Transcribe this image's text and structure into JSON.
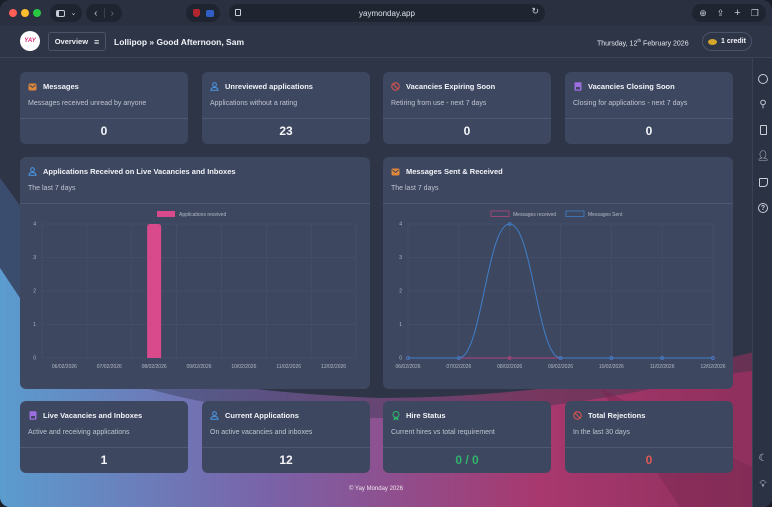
{
  "browser": {
    "url": "yaymonday.app"
  },
  "header": {
    "logo_text": "YAY",
    "overview_label": "Overview",
    "greeting": "Lollipop » Good Afternoon, Sam",
    "date_prefix": "Thursday, 12",
    "date_sup": "th",
    "date_suffix": " February 2026",
    "credit_label": "1 credit"
  },
  "cards_top": [
    {
      "title": "Messages",
      "subtitle": "Messages received unread by anyone",
      "value": "0",
      "icon": "envelope-icon",
      "icon_color": "#e0873a"
    },
    {
      "title": "Unreviewed applications",
      "subtitle": "Applications without a rating",
      "value": "23",
      "icon": "user-icon",
      "icon_color": "#4a90d9"
    },
    {
      "title": "Vacancies Expiring Soon",
      "subtitle": "Retiring from use - next 7 days",
      "value": "0",
      "icon": "ban-icon",
      "icon_color": "#d9534f"
    },
    {
      "title": "Vacancies Closing Soon",
      "subtitle": "Closing for applications - next 7 days",
      "value": "0",
      "icon": "badge-icon",
      "icon_color": "#9b6fe0"
    }
  ],
  "cards_bottom": [
    {
      "title": "Live Vacancies and Inboxes",
      "subtitle": "Active and receiving applications",
      "value": "1",
      "icon": "badge-icon",
      "icon_color": "#9b6fe0",
      "value_color": "#f5f6f9"
    },
    {
      "title": "Current Applications",
      "subtitle": "On active vacancies and inboxes",
      "value": "12",
      "icon": "user-icon",
      "icon_color": "#4a90d9",
      "value_color": "#f5f6f9"
    },
    {
      "title": "Hire Status",
      "subtitle": "Current hires vs total requirement",
      "value": "0 / 0",
      "icon": "award-icon",
      "icon_color": "#2fb36b",
      "value_color": "#2fb36b"
    },
    {
      "title": "Total Rejections",
      "subtitle": "In the last 30 days",
      "value": "0",
      "icon": "ban-icon",
      "icon_color": "#d9534f",
      "value_color": "#e05a55"
    }
  ],
  "footer": {
    "text": "© Yay Monday 2026"
  },
  "chart_data": [
    {
      "type": "bar",
      "title": "Applications Received on Live Vacancies and Inboxes",
      "subtitle": "The last 7 days",
      "categories": [
        "06/02/2026",
        "07/02/2026",
        "08/02/2026",
        "09/02/2026",
        "10/02/2026",
        "11/02/2026",
        "12/02/2026"
      ],
      "series": [
        {
          "name": "Applications received",
          "color": "#d94a8c",
          "values": [
            0,
            0,
            4,
            0,
            0,
            0,
            0
          ]
        }
      ],
      "ylim": [
        0,
        4
      ],
      "yticks": [
        0,
        1,
        2,
        3,
        4
      ],
      "legend": "top-center",
      "grid": true
    },
    {
      "type": "line",
      "title": "Messages Sent & Received",
      "subtitle": "The last 7 days",
      "categories": [
        "06/02/2026",
        "07/02/2026",
        "08/02/2026",
        "09/02/2026",
        "10/02/2026",
        "11/02/2026",
        "12/02/2026"
      ],
      "series": [
        {
          "name": "Messages received",
          "color": "#b0467c",
          "values": [
            0,
            0,
            0,
            0,
            0,
            0,
            0
          ]
        },
        {
          "name": "Messages Sent",
          "color": "#3f7fc9",
          "values": [
            0,
            0,
            4,
            0,
            0,
            0,
            0
          ]
        }
      ],
      "ylim": [
        0,
        4
      ],
      "yticks": [
        0,
        1,
        2,
        3,
        4
      ],
      "legend": "top-center",
      "grid": true
    }
  ]
}
